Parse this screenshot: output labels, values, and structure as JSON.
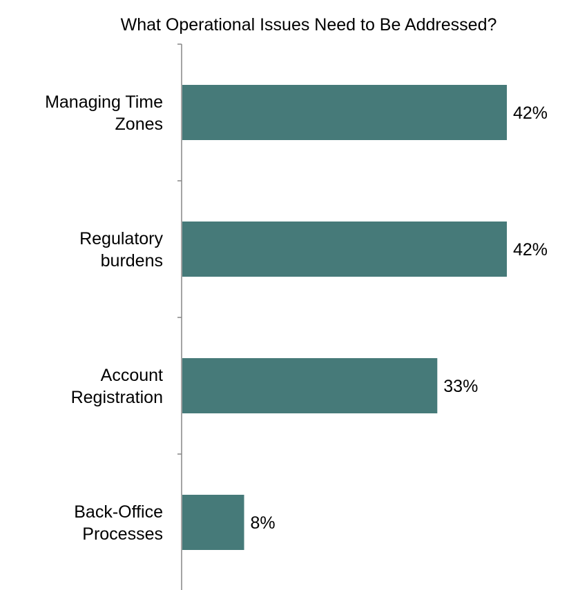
{
  "chart_data": {
    "type": "bar",
    "orientation": "horizontal",
    "title": "What Operational Issues Need to Be Addressed?",
    "categories": [
      [
        "Managing Time",
        "Zones"
      ],
      [
        "Regulatory",
        "burdens"
      ],
      [
        "Account",
        "Registration"
      ],
      [
        "Back-Office",
        "Processes"
      ]
    ],
    "values": [
      42,
      42,
      33,
      8
    ],
    "data_labels": [
      "42%",
      "42%",
      "33%",
      "8%"
    ],
    "xlim": [
      0,
      42
    ],
    "grid": false,
    "legend": "none",
    "colors": {
      "bar": "#467A79",
      "axis": "#868686",
      "text": "#000000"
    }
  }
}
